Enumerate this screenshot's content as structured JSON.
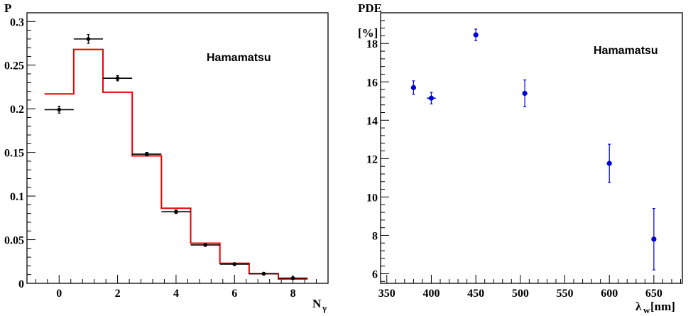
{
  "chart_data": [
    {
      "type": "scatter",
      "title": "",
      "ylabel": "P",
      "xlabel": "N",
      "xlabel_sub": "γ",
      "annotation": "Hamamatsu",
      "xlim": [
        -1.1,
        9.2
      ],
      "ylim": [
        0,
        0.31
      ],
      "xticks": [
        0,
        2,
        4,
        6,
        8
      ],
      "xtick_labels": [
        "0",
        "2",
        "4",
        "6",
        "8"
      ],
      "yticks": [
        0,
        0.05,
        0.1,
        0.15,
        0.2,
        0.25,
        0.3
      ],
      "ytick_labels": [
        "0",
        "0.05",
        "0.1",
        "0.15",
        "0.2",
        "0.25",
        "0.3"
      ],
      "grid": false,
      "series": [
        {
          "kind": "points",
          "color": "#000000",
          "x": [
            0,
            1,
            2,
            3,
            4,
            5,
            6,
            7,
            8
          ],
          "y": [
            0.199,
            0.28,
            0.235,
            0.148,
            0.082,
            0.044,
            0.022,
            0.011,
            0.006
          ],
          "yerr": [
            0.004,
            0.005,
            0.003,
            0.002,
            0.002,
            0.0015,
            0.0012,
            0.001,
            0.0008
          ],
          "xerr": 0.5
        },
        {
          "kind": "step",
          "color": "#ee0000",
          "x": [
            0,
            1,
            2,
            3,
            4,
            5,
            6,
            7,
            8
          ],
          "y": [
            0.217,
            0.268,
            0.219,
            0.146,
            0.086,
            0.046,
            0.023,
            0.011,
            0.005
          ]
        }
      ]
    },
    {
      "type": "scatter",
      "title": "",
      "ylabel": "PDE",
      "ylabel2": "[%]",
      "xlabel": "λ",
      "xlabel_sub": "w",
      "xlabel_unit": "[nm]",
      "annotation": "Hamamatsu",
      "xlim": [
        343,
        682
      ],
      "ylim": [
        5.5,
        19.6
      ],
      "xticks": [
        350,
        400,
        450,
        500,
        550,
        600,
        650
      ],
      "xtick_labels": [
        "350",
        "400",
        "450",
        "500",
        "550",
        "600",
        "650"
      ],
      "yticks": [
        6,
        8,
        10,
        12,
        14,
        16,
        18
      ],
      "ytick_labels": [
        "6",
        "8",
        "10",
        "12",
        "14",
        "16",
        "18"
      ],
      "grid": false,
      "series": [
        {
          "kind": "points",
          "color": "#0000dd",
          "x": [
            380,
            400,
            450,
            505,
            600,
            650
          ],
          "y": [
            15.7,
            15.15,
            18.45,
            15.4,
            11.75,
            7.8
          ],
          "yerr": [
            0.35,
            0.3,
            0.3,
            0.7,
            1.0,
            1.6
          ],
          "xerr": [
            0,
            5,
            0,
            0,
            0,
            0
          ]
        }
      ]
    }
  ]
}
